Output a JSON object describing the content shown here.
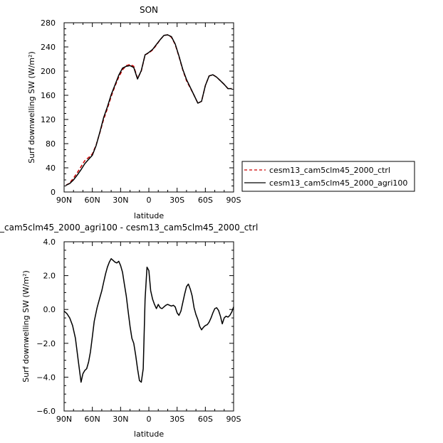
{
  "chart_data": [
    {
      "type": "line",
      "title": "SON",
      "xlabel": "latitude",
      "ylabel": "Surf downwelling SW  (W/m²)",
      "xlim": [
        90,
        -90
      ],
      "ylim": [
        0,
        280
      ],
      "xticks": [
        90,
        60,
        30,
        0,
        -30,
        -60,
        -90
      ],
      "xtick_labels": [
        "90N",
        "60N",
        "30N",
        "0",
        "30S",
        "60S",
        "90S"
      ],
      "yticks": [
        0,
        40,
        80,
        120,
        160,
        200,
        240,
        280
      ],
      "ytick_labels": [
        "0",
        "40",
        "80",
        "120",
        "160",
        "200",
        "240",
        "280"
      ],
      "grid": false,
      "legend_position": "right",
      "series": [
        {
          "name": "cesm13_cam5clm45_2000_ctrl",
          "color": "#cc0000",
          "dash": "dashed",
          "x": [
            88,
            84,
            80,
            76,
            72,
            68,
            64,
            60,
            56,
            52,
            48,
            44,
            40,
            36,
            32,
            28,
            24,
            20,
            16,
            12,
            8,
            4,
            0,
            -4,
            -8,
            -12,
            -16,
            -20,
            -24,
            -28,
            -32,
            -36,
            -40,
            -44,
            -48,
            -52,
            -56,
            -60,
            -64,
            -68,
            -72,
            -76,
            -80,
            -84,
            -88
          ],
          "y": [
            11,
            15,
            23,
            32,
            42,
            52,
            57,
            63,
            78,
            98,
            120,
            138,
            158,
            175,
            190,
            202,
            209,
            211,
            208,
            188,
            200,
            227,
            230,
            235,
            243,
            252,
            259,
            260,
            256,
            244,
            224,
            202,
            184,
            172,
            160,
            147,
            150,
            176,
            192,
            194,
            190,
            184,
            178,
            171,
            171
          ]
        },
        {
          "name": "cesm13_cam5clm45_2000_agri100",
          "color": "#000000",
          "dash": "solid",
          "x": [
            88,
            84,
            80,
            76,
            72,
            68,
            64,
            60,
            56,
            52,
            48,
            44,
            40,
            36,
            32,
            28,
            24,
            20,
            16,
            12,
            8,
            4,
            0,
            -4,
            -8,
            -12,
            -16,
            -20,
            -24,
            -28,
            -32,
            -36,
            -40,
            -44,
            -48,
            -52,
            -56,
            -60,
            -64,
            -68,
            -72,
            -76,
            -80,
            -84,
            -88
          ],
          "y": [
            11,
            14,
            20,
            28,
            37,
            47,
            54,
            61,
            77,
            99,
            123,
            141,
            161,
            177,
            193,
            205,
            208,
            209,
            206,
            187,
            201,
            227,
            231,
            236,
            244,
            252,
            259,
            260,
            257,
            245,
            225,
            203,
            186,
            173,
            160,
            147,
            150,
            176,
            192,
            194,
            190,
            184,
            178,
            171,
            171
          ]
        }
      ]
    },
    {
      "type": "line",
      "title": "_cam5clm45_2000_agri100 - cesm13_cam5clm45_2000_ctrl",
      "xlabel": "latitude",
      "ylabel": "Surf downwelling SW  (W/m²)",
      "xlim": [
        90,
        -90
      ],
      "ylim": [
        -6.0,
        4.0
      ],
      "xticks": [
        90,
        60,
        30,
        0,
        -30,
        -60,
        -90
      ],
      "xtick_labels": [
        "90N",
        "60N",
        "30N",
        "0",
        "30S",
        "60S",
        "90S"
      ],
      "yticks": [
        -6,
        -4,
        -2,
        0,
        2,
        4
      ],
      "ytick_labels": [
        "−6.0",
        "−4.0",
        "−2.0",
        "0.0",
        "2.0",
        "4.0"
      ],
      "grid": false,
      "series": [
        {
          "color": "#000000",
          "dash": "solid",
          "x": [
            90,
            87,
            84,
            81,
            78,
            75,
            72,
            70,
            68,
            66,
            64,
            62,
            60,
            58,
            55,
            52,
            50,
            48,
            46,
            44,
            42,
            40,
            38,
            36,
            34,
            32,
            30,
            28,
            26,
            24,
            22,
            20,
            18,
            16,
            14,
            12,
            10,
            8,
            6,
            4,
            2,
            0,
            -2,
            -4,
            -6,
            -8,
            -10,
            -12,
            -14,
            -16,
            -18,
            -20,
            -22,
            -24,
            -26,
            -28,
            -30,
            -32,
            -34,
            -36,
            -38,
            -40,
            -42,
            -44,
            -46,
            -48,
            -50,
            -52,
            -54,
            -56,
            -58,
            -60,
            -62,
            -64,
            -66,
            -68,
            -70,
            -72,
            -74,
            -76,
            -78,
            -80,
            -82,
            -84,
            -86,
            -88,
            -90
          ],
          "y": [
            -0.1,
            -0.25,
            -0.5,
            -0.95,
            -1.7,
            -3.0,
            -4.3,
            -3.8,
            -3.6,
            -3.5,
            -3.1,
            -2.5,
            -1.6,
            -0.7,
            0.1,
            0.7,
            1.1,
            1.6,
            2.1,
            2.5,
            2.8,
            3.0,
            2.9,
            2.8,
            2.75,
            2.85,
            2.6,
            2.2,
            1.5,
            0.8,
            -0.1,
            -1.0,
            -1.7,
            -2.0,
            -2.7,
            -3.5,
            -4.2,
            -4.3,
            -3.5,
            0.6,
            2.5,
            2.3,
            1.1,
            0.6,
            0.3,
            0.05,
            0.3,
            0.1,
            0.05,
            0.15,
            0.25,
            0.3,
            0.25,
            0.2,
            0.25,
            0.15,
            -0.2,
            -0.35,
            -0.1,
            0.4,
            0.9,
            1.35,
            1.5,
            1.2,
            0.8,
            0.1,
            -0.3,
            -0.6,
            -1.0,
            -1.2,
            -1.05,
            -0.95,
            -0.9,
            -0.75,
            -0.5,
            -0.2,
            0.05,
            0.1,
            -0.05,
            -0.4,
            -0.85,
            -0.5,
            -0.4,
            -0.45,
            -0.35,
            -0.15,
            0.15
          ]
        }
      ]
    }
  ]
}
